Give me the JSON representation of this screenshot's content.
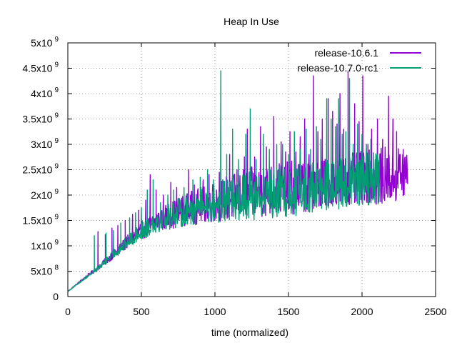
{
  "chart_data": {
    "type": "line",
    "title": "Heap In Use",
    "xlabel": "time (normalized)",
    "ylabel": "",
    "xlim": [
      0,
      2500
    ],
    "ylim": [
      0,
      5000000000
    ],
    "x_ticks": [
      0,
      500,
      1000,
      1500,
      2000,
      2500
    ],
    "y_ticks": [
      {
        "value": 0,
        "base": "0",
        "exp": ""
      },
      {
        "value": 500000000,
        "base": "5x10",
        "exp": "8"
      },
      {
        "value": 1000000000,
        "base": "1x10",
        "exp": "9"
      },
      {
        "value": 1500000000,
        "base": "1.5x10",
        "exp": "9"
      },
      {
        "value": 2000000000,
        "base": "2x10",
        "exp": "9"
      },
      {
        "value": 2500000000,
        "base": "2.5x10",
        "exp": "9"
      },
      {
        "value": 3000000000,
        "base": "3x10",
        "exp": "9"
      },
      {
        "value": 3500000000,
        "base": "3.5x10",
        "exp": "9"
      },
      {
        "value": 4000000000,
        "base": "4x10",
        "exp": "9"
      },
      {
        "value": 4500000000,
        "base": "4.5x10",
        "exp": "9"
      },
      {
        "value": 5000000000,
        "base": "5x10",
        "exp": "9"
      }
    ],
    "grid": true,
    "legend_position": "top-right",
    "series": [
      {
        "name": "release-10.6.1",
        "color": "#9400d3",
        "x_max": 2310,
        "baseline": [
          [
            0,
            100000000
          ],
          [
            100,
            330000000
          ],
          [
            200,
            540000000
          ],
          [
            300,
            780000000
          ],
          [
            400,
            1030000000
          ],
          [
            500,
            1250000000
          ],
          [
            600,
            1420000000
          ],
          [
            700,
            1520000000
          ],
          [
            800,
            1620000000
          ],
          [
            1000,
            1750000000
          ],
          [
            1200,
            1870000000
          ],
          [
            1400,
            1950000000
          ],
          [
            1600,
            2000000000
          ],
          [
            1800,
            2050000000
          ],
          [
            2000,
            2120000000
          ],
          [
            2200,
            2200000000
          ],
          [
            2310,
            2250000000
          ]
        ],
        "spikes": [
          [
            205,
            1280000000
          ],
          [
            255,
            1220000000
          ],
          [
            300,
            1350000000
          ],
          [
            340,
            1400000000
          ],
          [
            390,
            1500000000
          ],
          [
            440,
            1620000000
          ],
          [
            480,
            1700000000
          ],
          [
            530,
            1900000000
          ],
          [
            560,
            2400000000
          ],
          [
            600,
            2100000000
          ],
          [
            650,
            2000000000
          ],
          [
            700,
            2250000000
          ],
          [
            740,
            2150000000
          ],
          [
            820,
            2500000000
          ],
          [
            860,
            2200000000
          ],
          [
            920,
            2300000000
          ],
          [
            960,
            2400000000
          ],
          [
            1030,
            2450000000
          ],
          [
            1100,
            2800000000
          ],
          [
            1150,
            2500000000
          ],
          [
            1200,
            2750000000
          ],
          [
            1220,
            3300000000
          ],
          [
            1270,
            2750000000
          ],
          [
            1310,
            3350000000
          ],
          [
            1350,
            2950000000
          ],
          [
            1400,
            3550000000
          ],
          [
            1450,
            3050000000
          ],
          [
            1480,
            2850000000
          ],
          [
            1510,
            3250000000
          ],
          [
            1550,
            2850000000
          ],
          [
            1580,
            3150000000
          ],
          [
            1610,
            3500000000
          ],
          [
            1640,
            2800000000
          ],
          [
            1670,
            4350000000
          ],
          [
            1700,
            3250000000
          ],
          [
            1730,
            3500000000
          ],
          [
            1770,
            3900000000
          ],
          [
            1800,
            3650000000
          ],
          [
            1830,
            3400000000
          ],
          [
            1850,
            4000000000
          ],
          [
            1875,
            3300000000
          ],
          [
            1905,
            4450000000
          ],
          [
            1950,
            3800000000
          ],
          [
            1980,
            3450000000
          ],
          [
            2005,
            4350000000
          ],
          [
            2040,
            3000000000
          ],
          [
            2065,
            3300000000
          ],
          [
            2105,
            3500000000
          ],
          [
            2140,
            3100000000
          ],
          [
            2180,
            3950000000
          ],
          [
            2210,
            3500000000
          ],
          [
            2235,
            3250000000
          ],
          [
            2260,
            2800000000
          ],
          [
            2280,
            2900000000
          ],
          [
            2300,
            2500000000
          ]
        ],
        "dips": [
          [
            1000,
            1400000000
          ],
          [
            1200,
            1500000000
          ],
          [
            1400,
            1550000000
          ],
          [
            1600,
            1650000000
          ],
          [
            1800,
            1800000000
          ],
          [
            2000,
            1800000000
          ],
          [
            2310,
            1850000000
          ]
        ]
      },
      {
        "name": "release-10.7.0-rc1",
        "color": "#009e73",
        "x_max": 2120,
        "baseline": [
          [
            0,
            100000000
          ],
          [
            100,
            320000000
          ],
          [
            200,
            530000000
          ],
          [
            300,
            780000000
          ],
          [
            400,
            1020000000
          ],
          [
            500,
            1230000000
          ],
          [
            600,
            1420000000
          ],
          [
            700,
            1520000000
          ],
          [
            800,
            1600000000
          ],
          [
            1000,
            1720000000
          ],
          [
            1200,
            1830000000
          ],
          [
            1400,
            1900000000
          ],
          [
            1600,
            1950000000
          ],
          [
            1800,
            2000000000
          ],
          [
            2000,
            2080000000
          ],
          [
            2120,
            2150000000
          ]
        ],
        "spikes": [
          [
            180,
            1200000000
          ],
          [
            260,
            1250000000
          ],
          [
            310,
            1300000000
          ],
          [
            360,
            1450000000
          ],
          [
            420,
            1550000000
          ],
          [
            460,
            1650000000
          ],
          [
            500,
            1750000000
          ],
          [
            540,
            2100000000
          ],
          [
            580,
            2300000000
          ],
          [
            630,
            1850000000
          ],
          [
            680,
            2000000000
          ],
          [
            720,
            2100000000
          ],
          [
            790,
            2150000000
          ],
          [
            850,
            2300000000
          ],
          [
            900,
            2350000000
          ],
          [
            950,
            2500000000
          ],
          [
            990,
            2300000000
          ],
          [
            1040,
            4450000000
          ],
          [
            1080,
            2800000000
          ],
          [
            1120,
            3300000000
          ],
          [
            1160,
            2700000000
          ],
          [
            1210,
            3200000000
          ],
          [
            1240,
            3700000000
          ],
          [
            1280,
            2700000000
          ],
          [
            1330,
            3200000000
          ],
          [
            1370,
            2900000000
          ],
          [
            1420,
            3000000000
          ],
          [
            1460,
            3000000000
          ],
          [
            1500,
            2800000000
          ],
          [
            1540,
            3250000000
          ],
          [
            1580,
            2900000000
          ],
          [
            1620,
            3300000000
          ],
          [
            1650,
            2900000000
          ],
          [
            1690,
            3350000000
          ],
          [
            1720,
            3100000000
          ],
          [
            1760,
            3900000000
          ],
          [
            1790,
            3500000000
          ],
          [
            1820,
            3350000000
          ],
          [
            1840,
            3900000000
          ],
          [
            1865,
            3200000000
          ],
          [
            1890,
            3250000000
          ],
          [
            1915,
            4300000000
          ],
          [
            1940,
            3000000000
          ],
          [
            1970,
            3400000000
          ],
          [
            2000,
            3200000000
          ],
          [
            2030,
            3000000000
          ],
          [
            2060,
            3100000000
          ],
          [
            2090,
            2700000000
          ],
          [
            2115,
            2400000000
          ]
        ],
        "dips": [
          [
            1000,
            1350000000
          ],
          [
            1200,
            1450000000
          ],
          [
            1400,
            1500000000
          ],
          [
            1600,
            1600000000
          ],
          [
            1800,
            1700000000
          ],
          [
            2000,
            1750000000
          ],
          [
            2120,
            1800000000
          ]
        ]
      }
    ]
  }
}
